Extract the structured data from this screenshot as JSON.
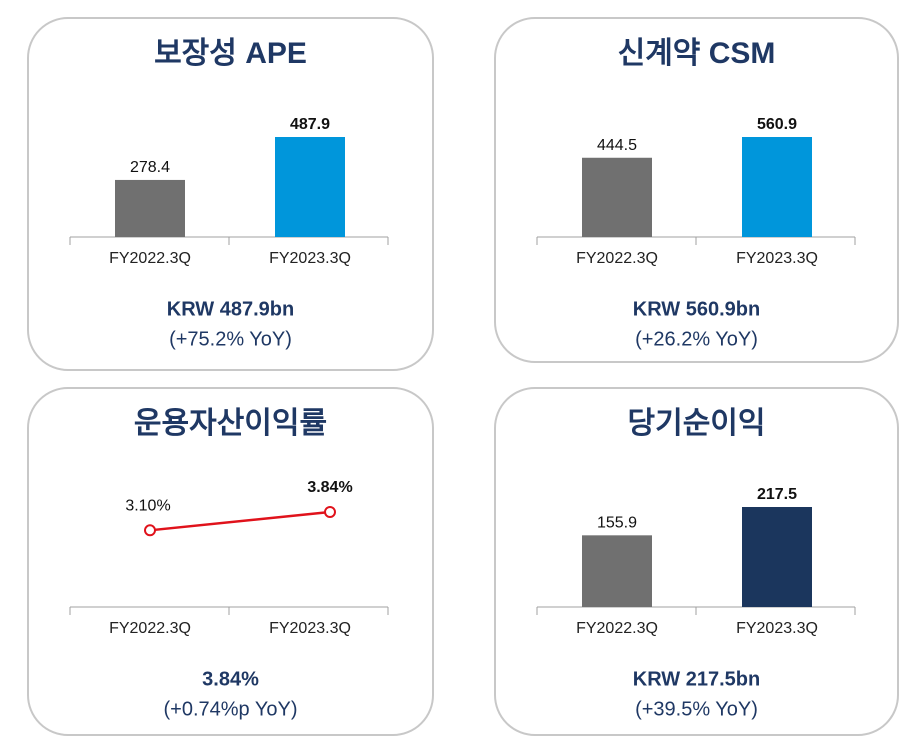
{
  "chart_data": [
    {
      "type": "bar",
      "title": "보장성 APE",
      "categories": [
        "FY2022.3Q",
        "FY2023.3Q"
      ],
      "values": [
        278.4,
        487.9
      ],
      "colors": [
        "#707070",
        "#0096db"
      ],
      "annotations": [
        "KRW 487.9bn",
        "(+75.2% YoY)"
      ]
    },
    {
      "type": "bar",
      "title": "신계약 CSM",
      "categories": [
        "FY2022.3Q",
        "FY2023.3Q"
      ],
      "values": [
        444.5,
        560.9
      ],
      "colors": [
        "#707070",
        "#0096db"
      ],
      "annotations": [
        "KRW 560.9bn",
        "(+26.2% YoY)"
      ]
    },
    {
      "type": "line",
      "title": "운용자산이익률",
      "categories": [
        "FY2022.3Q",
        "FY2023.3Q"
      ],
      "values": [
        3.1,
        3.84
      ],
      "value_labels": [
        "3.10%",
        "3.84%"
      ],
      "color": "#e0121b",
      "annotations": [
        "3.84%",
        "(+0.74%p YoY)"
      ]
    },
    {
      "type": "bar",
      "title": "당기순이익",
      "categories": [
        "FY2022.3Q",
        "FY2023.3Q"
      ],
      "values": [
        155.9,
        217.5
      ],
      "colors": [
        "#707070",
        "#1b365d"
      ],
      "annotations": [
        "KRW 217.5bn",
        "(+39.5% YoY)"
      ]
    }
  ]
}
